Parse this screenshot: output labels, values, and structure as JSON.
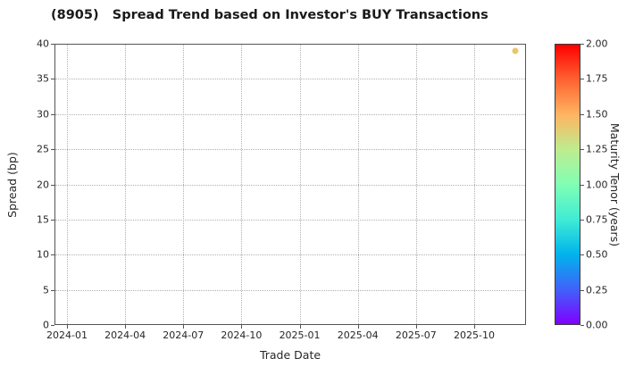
{
  "chart_data": {
    "type": "scatter",
    "title": "(8905)   Spread Trend based on Investor's BUY Transactions",
    "xlabel": "Trade Date",
    "ylabel": "Spread (bp)",
    "x_tick_labels": [
      "2024-01",
      "2024-04",
      "2024-07",
      "2024-10",
      "2025-01",
      "2025-04",
      "2025-07",
      "2025-10"
    ],
    "y_tick_values": [
      0,
      5,
      10,
      15,
      20,
      25,
      30,
      35,
      40
    ],
    "ylim": [
      0,
      40
    ],
    "grid": true,
    "grid_style": "dotted",
    "points": [
      {
        "trade_date": "2025-12-05",
        "spread_bp": 39,
        "maturity_tenor_years": 1.4,
        "color": "#e9c66d"
      }
    ],
    "colorbar": {
      "label": "Maturity Tenor (years)",
      "tick_labels": [
        "0.00",
        "0.25",
        "0.50",
        "0.75",
        "1.00",
        "1.25",
        "1.50",
        "1.75",
        "2.00"
      ],
      "range": [
        0.0,
        2.0
      ],
      "colormap": "rainbow",
      "gradient_stops_bottom_to_top": [
        "#8000ff",
        "#4062fa",
        "#00b4ec",
        "#40ecd4",
        "#80ffb4",
        "#bfec8e",
        "#ffb461",
        "#ff6232",
        "#ff0000"
      ]
    }
  }
}
